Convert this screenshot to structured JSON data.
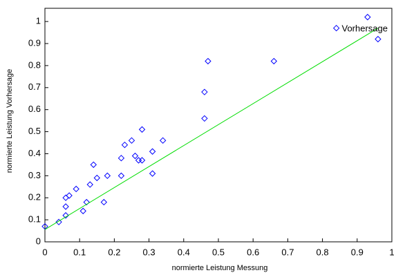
{
  "chart_data": {
    "type": "scatter",
    "x_label": "normierte Leistung Messung",
    "y_label": "normierte Leistung Vorhersage",
    "xlim": [
      0,
      1
    ],
    "ylim": [
      0,
      1.06
    ],
    "xticks": [
      0,
      0.1,
      0.2,
      0.3,
      0.4,
      0.5,
      0.6,
      0.7,
      0.8,
      0.9,
      1
    ],
    "yticks": [
      0,
      0.1,
      0.2,
      0.3,
      0.4,
      0.5,
      0.6,
      0.7,
      0.8,
      0.9,
      1
    ],
    "series": [
      {
        "name": "Vorhersage",
        "color": "#0000ff",
        "x": [
          0,
          0.04,
          0.06,
          0.06,
          0.07,
          0.06,
          0.09,
          0.11,
          0.12,
          0.13,
          0.14,
          0.15,
          0.18,
          0.17,
          0.22,
          0.22,
          0.23,
          0.25,
          0.26,
          0.27,
          0.28,
          0.28,
          0.31,
          0.31,
          0.34,
          0.46,
          0.46,
          0.47,
          0.66,
          0.84,
          0.93,
          0.96
        ],
        "values": [
          0.07,
          0.09,
          0.16,
          0.2,
          0.21,
          0.12,
          0.24,
          0.14,
          0.18,
          0.26,
          0.35,
          0.29,
          0.3,
          0.18,
          0.3,
          0.38,
          0.44,
          0.46,
          0.39,
          0.37,
          0.37,
          0.51,
          0.41,
          0.31,
          0.46,
          0.68,
          0.56,
          0.82,
          0.82,
          0.97,
          1.02,
          0.92
        ]
      },
      {
        "type": "line",
        "color": "#00dd00",
        "x": [
          0,
          0.96
        ],
        "values": [
          0.056,
          0.97
        ]
      }
    ],
    "legend": "top-right"
  }
}
